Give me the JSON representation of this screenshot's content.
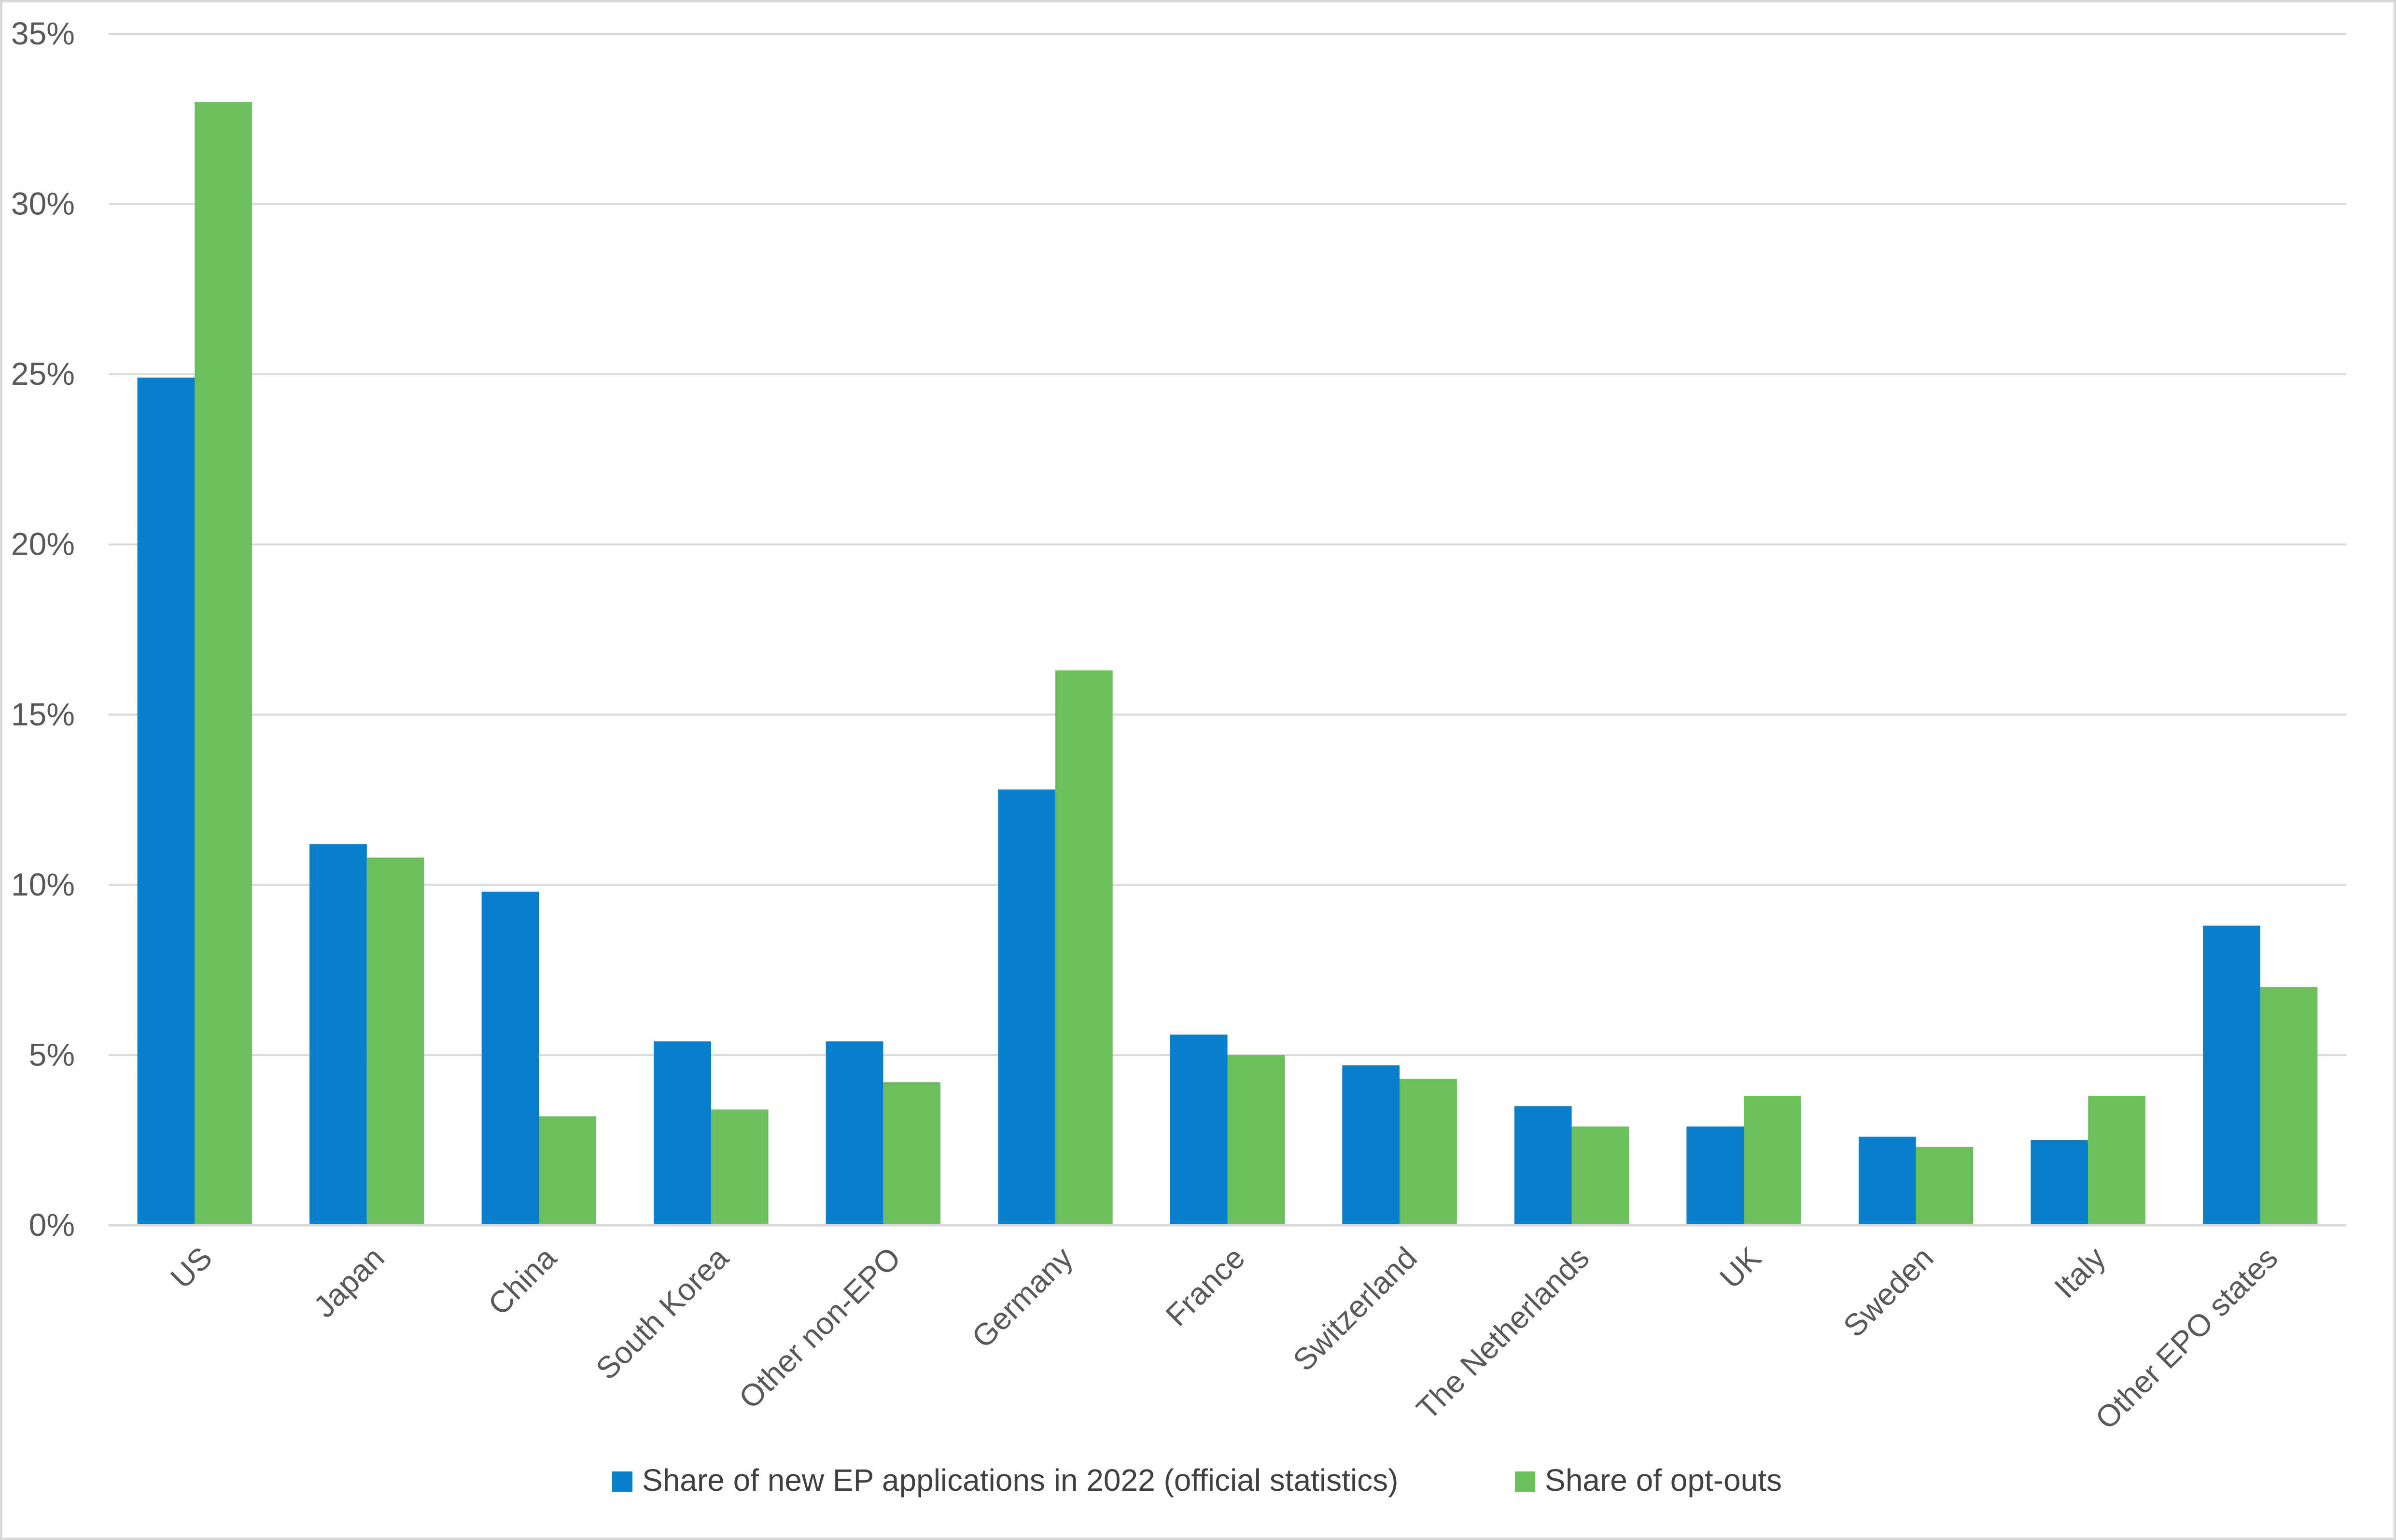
{
  "chart_data": {
    "type": "bar",
    "title": "",
    "xlabel": "",
    "ylabel": "",
    "categories": [
      "US",
      "Japan",
      "China",
      "South Korea",
      "Other non-EPO",
      "Germany",
      "France",
      "Switzerland",
      "The Netherlands",
      "UK",
      "Sweden",
      "Italy",
      "Other EPO states"
    ],
    "series": [
      {
        "name": "Share of new EP applications in 2022 (official statistics)",
        "color": "#0a7fcb",
        "values": [
          24.9,
          11.2,
          9.8,
          5.4,
          5.4,
          12.8,
          5.6,
          4.7,
          3.5,
          2.9,
          2.6,
          2.5,
          8.8
        ]
      },
      {
        "name": "Share of opt-outs",
        "color": "#6cc05c",
        "values": [
          33.0,
          10.8,
          3.2,
          3.4,
          4.2,
          16.3,
          5.0,
          4.3,
          2.9,
          3.8,
          2.3,
          3.8,
          7.0
        ]
      }
    ],
    "ylim": [
      0,
      35
    ],
    "yticks": [
      0,
      5,
      10,
      15,
      20,
      25,
      30,
      35
    ],
    "ytick_labels": [
      "0%",
      "5%",
      "10%",
      "15%",
      "20%",
      "25%",
      "30%",
      "35%"
    ],
    "grid": true,
    "legend_position": "bottom"
  }
}
